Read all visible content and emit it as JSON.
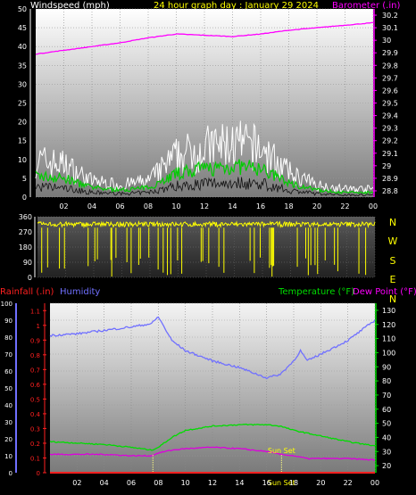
{
  "header": {
    "wind_label": "Windspeed (mph)",
    "title": "24 hour graph day : January 29 2024",
    "baro_label": "Barometer (.in)"
  },
  "x_ticks": [
    "02",
    "04",
    "06",
    "08",
    "10",
    "12",
    "14",
    "16",
    "18",
    "20",
    "22",
    "00"
  ],
  "wind_y_ticks": [
    "0",
    "5",
    "10",
    "15",
    "20",
    "25",
    "30",
    "35",
    "40",
    "45",
    "50"
  ],
  "baro_y_ticks": [
    "28.8",
    "28.9",
    "29",
    "29.1",
    "29.2",
    "29.3",
    "29.4",
    "29.5",
    "29.6",
    "29.7",
    "29.8",
    "29.9",
    "30",
    "30.1",
    "30.2"
  ],
  "dir_y_ticks": [
    "0",
    "90",
    "180",
    "270",
    "360"
  ],
  "compass": [
    "N",
    "W",
    "S",
    "E",
    "N"
  ],
  "lower_labels": {
    "rain": "Rainfall (.in)",
    "humidity": "Humidity",
    "temp": "Temperature (°F)",
    "dew": "Dew Point (°F)",
    "sunset": "Sun Set"
  },
  "humidity_ticks": [
    "0",
    "10",
    "20",
    "30",
    "40",
    "50",
    "60",
    "70",
    "80",
    "90",
    "100"
  ],
  "rain_ticks": [
    "0",
    "0.1",
    "0.2",
    "0.3",
    "0.4",
    "0.5",
    "0.6",
    "0.7",
    "0.8",
    "0.9",
    "1",
    "1.1"
  ],
  "temp_ticks": [
    "20",
    "30",
    "40",
    "50",
    "60",
    "70",
    "80",
    "90",
    "100",
    "110",
    "120",
    "130"
  ],
  "colors": {
    "wind": "#ffffff",
    "wind_avg": "#00cc00",
    "baro": "#ff00ff",
    "direction": "#ffff00",
    "rain": "#ff2020",
    "humidity": "#7070ff",
    "temp": "#00dd00",
    "dew": "#dd00dd",
    "axis_text": "#ffffff"
  },
  "chart_data": [
    {
      "type": "line",
      "title": "24 hour graph day : January 29 2024",
      "x_unit": "hour",
      "x": [
        0,
        2,
        4,
        6,
        8,
        10,
        12,
        14,
        16,
        18,
        20,
        22,
        24
      ],
      "xlim": [
        0,
        24
      ],
      "series": [
        {
          "name": "Windspeed (mph)",
          "axis": "left",
          "ylim": [
            0,
            50
          ],
          "values": [
            9,
            8,
            4,
            3,
            4,
            10,
            12,
            13,
            12,
            6,
            3,
            2,
            2
          ]
        },
        {
          "name": "Barometer (.in)",
          "axis": "right",
          "ylim": [
            28.75,
            30.25
          ],
          "values": [
            29.89,
            29.92,
            29.95,
            29.98,
            30.02,
            30.05,
            30.04,
            30.03,
            30.05,
            30.08,
            30.1,
            30.12,
            30.14
          ]
        }
      ]
    },
    {
      "type": "scatter",
      "title": "",
      "x_unit": "hour",
      "xlim": [
        0,
        24
      ],
      "ylim": [
        0,
        360
      ],
      "y_ticks": [
        0,
        90,
        180,
        270,
        360
      ],
      "typical_direction_deg": 315
    },
    {
      "type": "line",
      "x_unit": "hour",
      "x": [
        0,
        2,
        4,
        6,
        7.5,
        8,
        9,
        10,
        12,
        14,
        16,
        17,
        18,
        18.5,
        19,
        20,
        22,
        24
      ],
      "xlim": [
        0,
        24
      ],
      "series": [
        {
          "name": "Humidity",
          "axis": "left",
          "ylim": [
            0,
            100
          ],
          "values": [
            81,
            82,
            84,
            86,
            88,
            92,
            78,
            72,
            66,
            62,
            56,
            58,
            66,
            72,
            66,
            70,
            78,
            90
          ]
        },
        {
          "name": "Temperature (°F)",
          "axis": "right",
          "ylim": [
            15,
            135
          ],
          "values": [
            37,
            36,
            35,
            33,
            31,
            33,
            40,
            45,
            48,
            49,
            49,
            48,
            45,
            44,
            43,
            41,
            37,
            34
          ]
        },
        {
          "name": "Dew Point (°F)",
          "axis": "right",
          "ylim": [
            15,
            135
          ],
          "values": [
            28,
            28,
            28,
            27,
            27,
            29,
            31,
            32,
            33,
            32,
            30,
            28,
            27,
            26,
            25,
            25,
            25,
            24
          ]
        },
        {
          "name": "Rainfall (.in)",
          "axis": "left2",
          "ylim": [
            0,
            1.15
          ],
          "values": [
            0,
            0,
            0,
            0,
            0,
            0,
            0,
            0,
            0,
            0,
            0,
            0,
            0,
            0,
            0,
            0,
            0,
            0
          ]
        }
      ],
      "annotations": [
        {
          "text": "Sun Set",
          "x": 17.1
        }
      ]
    }
  ]
}
